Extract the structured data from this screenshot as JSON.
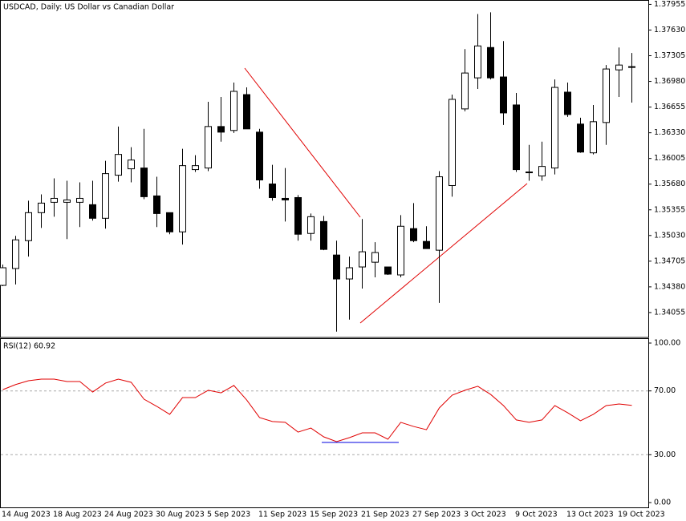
{
  "chart_data": [
    {
      "type": "candlestick",
      "title": "USDCAD, Daily:  US Dollar vs Canadian Dollar",
      "categories": [
        "14 Aug 2023",
        null,
        null,
        null,
        "18 Aug 2023",
        null,
        null,
        null,
        "24 Aug 2023",
        null,
        null,
        null,
        "30 Aug 2023",
        null,
        null,
        null,
        "5 Sep 2023",
        null,
        null,
        null,
        "11 Sep 2023",
        null,
        null,
        null,
        "15 Sep 2023",
        null,
        null,
        null,
        "21 Sep 2023",
        null,
        null,
        null,
        "27 Sep 2023",
        null,
        null,
        null,
        "3 Oct 2023",
        null,
        null,
        null,
        "9 Oct 2023",
        null,
        null,
        null,
        "13 Oct 2023",
        null,
        null,
        null,
        "19 Oct 2023",
        null
      ],
      "open": [
        1.34399,
        1.34612,
        1.34965,
        1.35319,
        1.3545,
        1.3545,
        1.3545,
        1.3542,
        1.35248,
        1.35793,
        1.35874,
        1.35884,
        1.35531,
        1.35319,
        1.35076,
        1.35864,
        1.35884,
        1.36409,
        1.36359,
        1.36813,
        1.36338,
        1.35682,
        1.355,
        1.3551,
        1.35056,
        1.35207,
        1.34783,
        1.3448,
        1.34632,
        1.34692,
        1.34632,
        1.34531,
        1.35117,
        1.34955,
        1.34844,
        1.35662,
        1.36632,
        1.37025,
        1.37409,
        1.37036,
        1.36682,
        1.35834,
        1.35783,
        1.35884,
        1.36844,
        1.3644,
        1.36076,
        1.3646,
        1.37126,
        1.37167
      ],
      "high": [
        1.34662,
        1.35026,
        1.3547,
        1.35551,
        1.35753,
        1.35723,
        1.35702,
        1.35723,
        1.35975,
        1.36409,
        1.36147,
        1.36379,
        1.35773,
        1.35319,
        1.36127,
        1.36046,
        1.36722,
        1.36783,
        1.36965,
        1.36904,
        1.36379,
        1.35925,
        1.35884,
        1.35541,
        1.35308,
        1.35278,
        1.34965,
        1.34763,
        1.35238,
        1.34945,
        1.34632,
        1.35288,
        1.3544,
        1.35147,
        1.35844,
        1.36813,
        1.37389,
        1.37833,
        1.37854,
        1.3749,
        1.36833,
        1.36177,
        1.36217,
        1.37005,
        1.36965,
        1.3652,
        1.36682,
        1.37187,
        1.37409,
        1.37339
      ],
      "low": [
        1.34389,
        1.3441,
        1.34763,
        1.35126,
        1.35268,
        1.34985,
        1.35137,
        1.35218,
        1.35117,
        1.35712,
        1.35702,
        1.3549,
        1.35137,
        1.35046,
        1.34915,
        1.35834,
        1.35844,
        1.36217,
        1.36328,
        1.36379,
        1.35622,
        1.3547,
        1.35207,
        1.34965,
        1.34965,
        1.34844,
        1.33814,
        1.33965,
        1.34359,
        1.345,
        1.34531,
        1.345,
        1.34945,
        1.34864,
        1.34177,
        1.35521,
        1.36601,
        1.36884,
        1.37005,
        1.36429,
        1.35834,
        1.35723,
        1.35723,
        1.35803,
        1.36531,
        1.36076,
        1.36056,
        1.36177,
        1.36783,
        1.36712
      ],
      "close": [
        1.34622,
        1.34975,
        1.35319,
        1.3544,
        1.355,
        1.3548,
        1.355,
        1.35248,
        1.35813,
        1.36056,
        1.35985,
        1.35521,
        1.35308,
        1.35076,
        1.35914,
        1.35914,
        1.36409,
        1.36338,
        1.36854,
        1.36379,
        1.35733,
        1.3551,
        1.3548,
        1.35046,
        1.35268,
        1.34854,
        1.3448,
        1.34622,
        1.34824,
        1.34814,
        1.34541,
        1.35147,
        1.34965,
        1.34864,
        1.35773,
        1.36753,
        1.37086,
        1.37429,
        1.37025,
        1.36581,
        1.35864,
        1.35824,
        1.35904,
        1.36904,
        1.36561,
        1.36086,
        1.3647,
        1.37137,
        1.37187,
        1.37157
      ],
      "up_color": "#ffffff",
      "down_color": "#000000",
      "ylim": [
        1.3375,
        1.38
      ],
      "yticks": [
        1.34055,
        {
          "value": 1.3438,
          "label": "1.34380"
        },
        1.34705,
        {
          "value": 1.3503,
          "label": "1.35030"
        },
        1.35355,
        {
          "value": 1.3568,
          "label": "1.35680"
        },
        1.36005,
        {
          "value": 1.3633,
          "label": "1.36330"
        },
        1.36655,
        {
          "value": 1.3698,
          "label": "1.36980"
        },
        1.37305,
        {
          "value": 1.3763,
          "label": "1.37630"
        },
        1.37955
      ]
    },
    {
      "type": "line",
      "title": "RSI(12) 60.92",
      "color": "#e00000",
      "values": [
        70.8,
        74,
        76.4,
        77.4,
        77.4,
        75.9,
        75.9,
        69.3,
        74.9,
        77.4,
        75.4,
        64.8,
        60.3,
        55.3,
        65.8,
        65.8,
        70.4,
        68.8,
        73.4,
        64.3,
        53.3,
        50.8,
        50.3,
        44.2,
        46.7,
        41.2,
        38.2,
        40.7,
        43.7,
        43.7,
        39.7,
        50.3,
        47.7,
        45.7,
        59.3,
        67.3,
        70.4,
        72.9,
        67.8,
        60.8,
        51.8,
        50.3,
        51.8,
        60.8,
        56.3,
        51.3,
        55.3,
        60.8,
        61.8,
        60.92
      ],
      "ylim": [
        0,
        100
      ],
      "yticks": [
        {
          "value": 0,
          "label": "0.00"
        },
        {
          "value": 30,
          "label": "30.00"
        },
        {
          "value": 70,
          "label": "70.00"
        },
        {
          "value": 100,
          "label": "100.00"
        }
      ],
      "grid_values": [
        30,
        70
      ]
    }
  ]
}
